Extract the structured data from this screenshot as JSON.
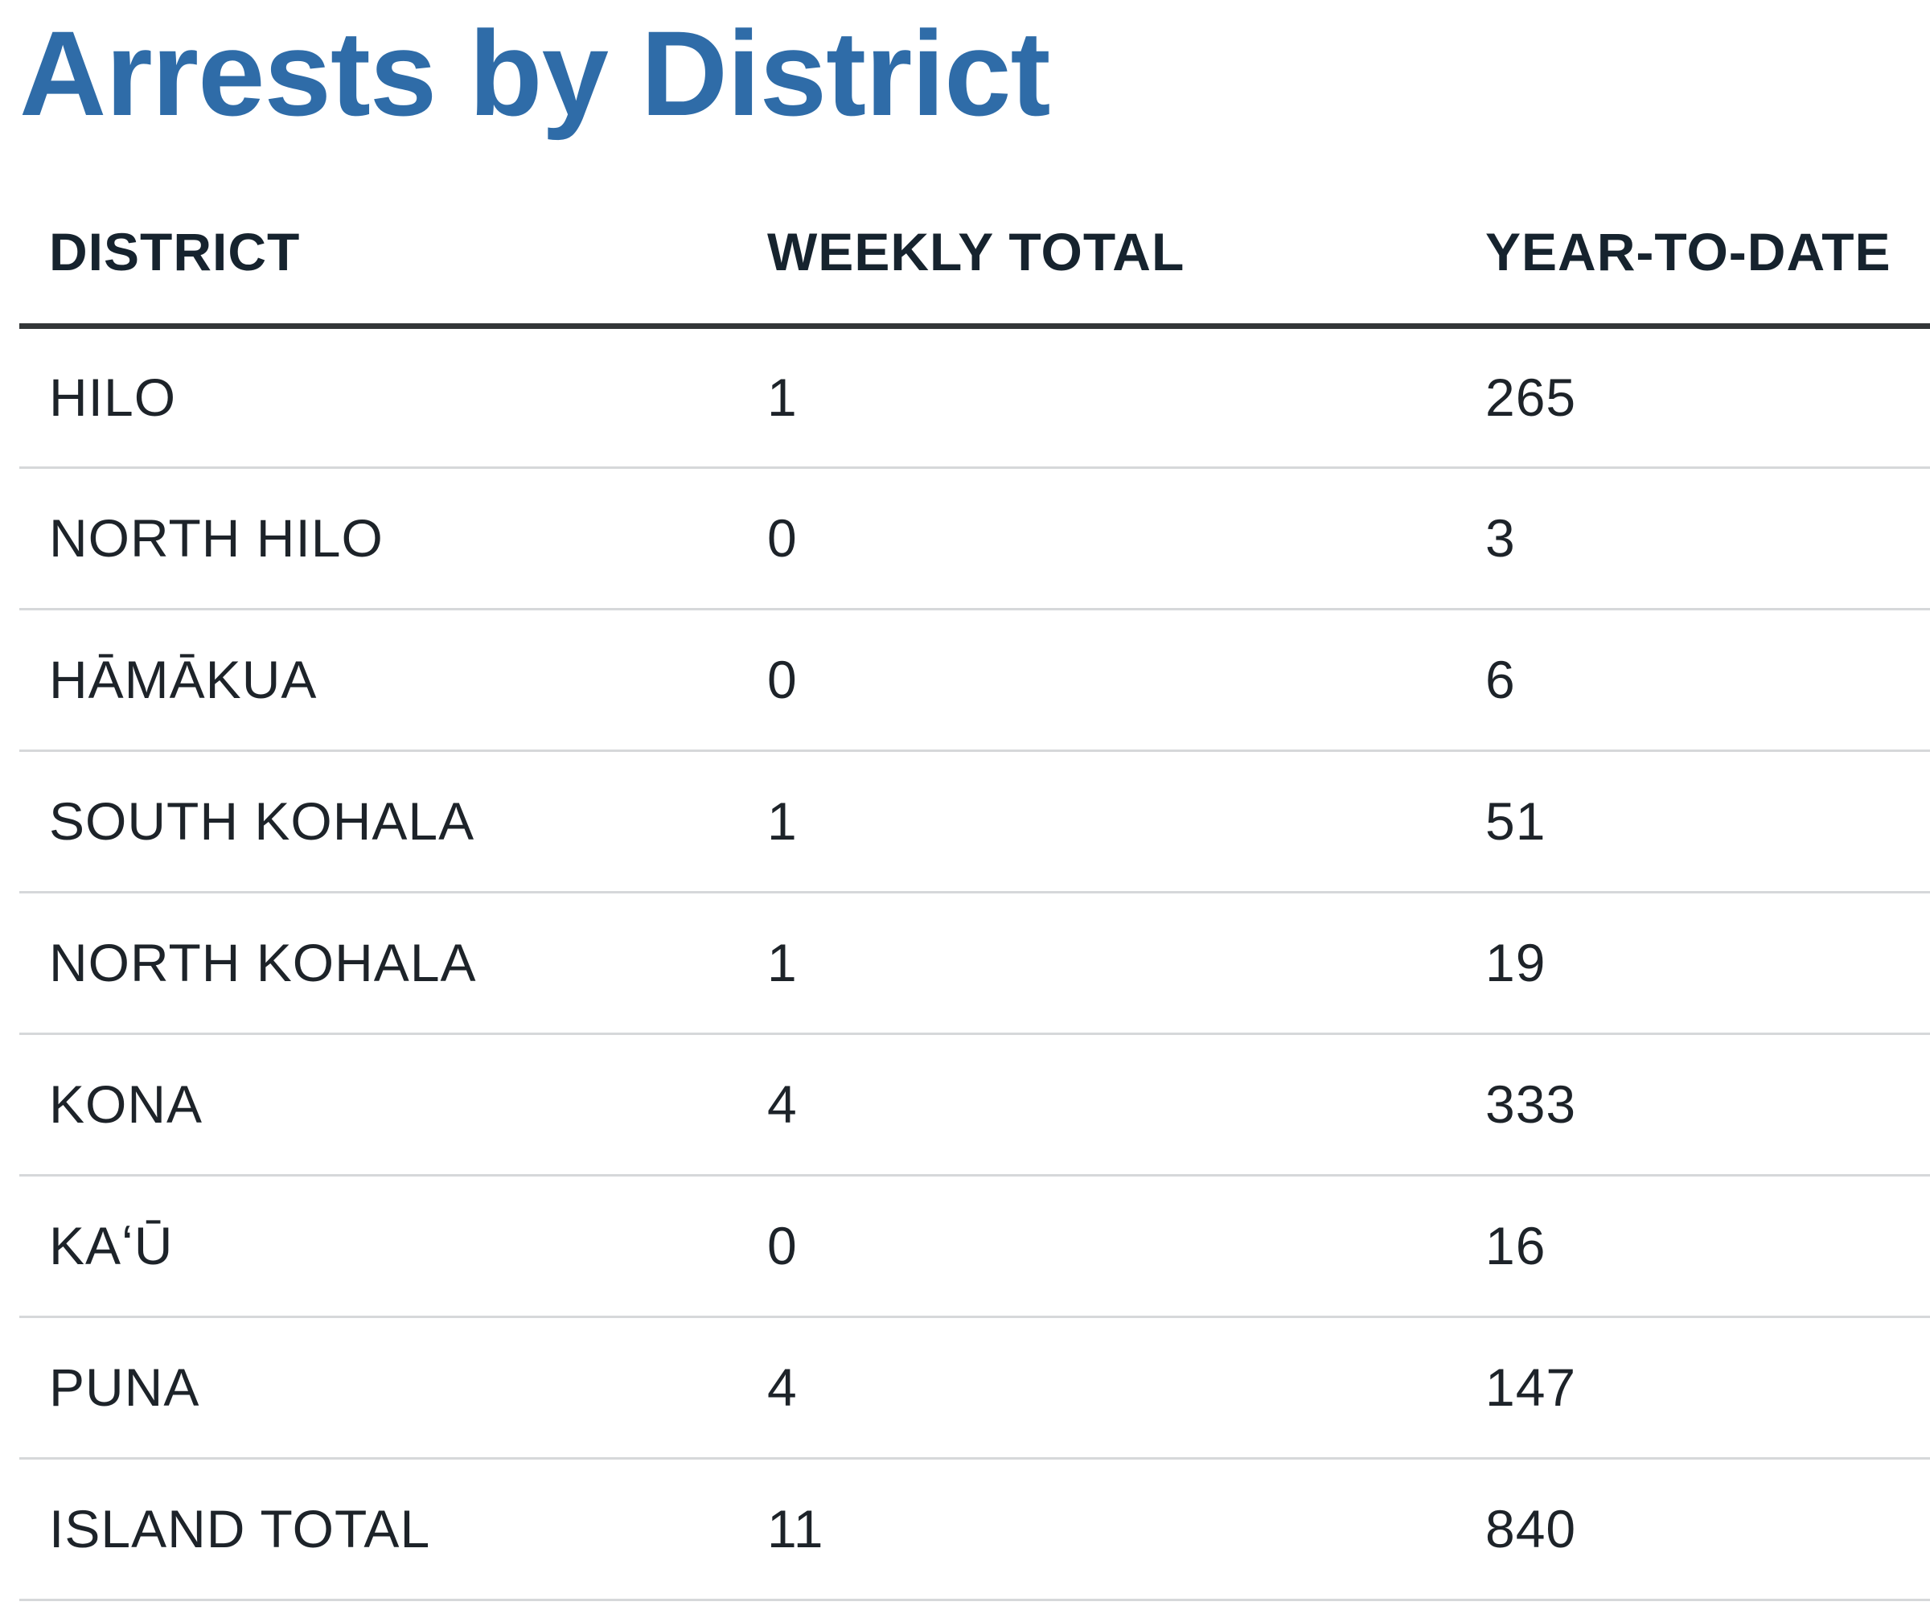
{
  "page_title": "Arrests by District",
  "table": {
    "headers": {
      "district": "DISTRICT",
      "weekly_total": "WEEKLY TOTAL",
      "year_to_date": "YEAR-TO-DATE"
    },
    "rows": [
      {
        "district": "HILO",
        "weekly_total": "1",
        "year_to_date": "265"
      },
      {
        "district": "NORTH HILO",
        "weekly_total": "0",
        "year_to_date": "3"
      },
      {
        "district": "HĀMĀKUA",
        "weekly_total": "0",
        "year_to_date": "6"
      },
      {
        "district": "SOUTH KOHALA",
        "weekly_total": "1",
        "year_to_date": "51"
      },
      {
        "district": "NORTH KOHALA",
        "weekly_total": "1",
        "year_to_date": "19"
      },
      {
        "district": "KONA",
        "weekly_total": "4",
        "year_to_date": "333"
      },
      {
        "district": "KAʻŪ",
        "weekly_total": "0",
        "year_to_date": "16"
      },
      {
        "district": "PUNA",
        "weekly_total": "4",
        "year_to_date": "147"
      },
      {
        "district": "ISLAND TOTAL",
        "weekly_total": "11",
        "year_to_date": "840"
      }
    ]
  },
  "colors": {
    "title": "#2f6ca8",
    "header_text": "#16232e",
    "header_rule": "#333638",
    "row_rule": "#d6d8da",
    "body_text": "#1d2329"
  }
}
